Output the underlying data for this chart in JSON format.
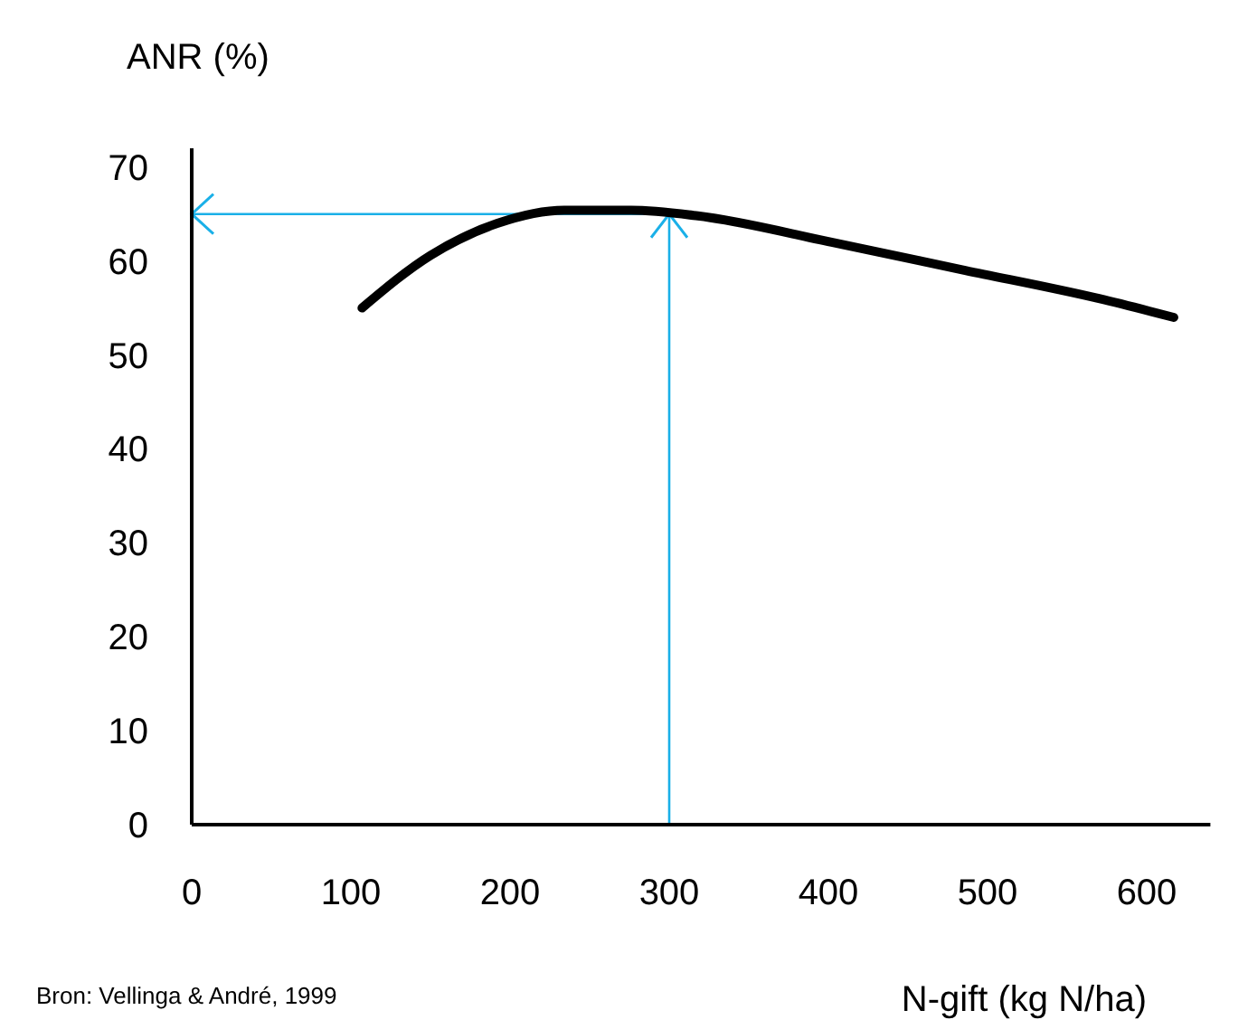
{
  "chart_data": {
    "type": "line",
    "ylabel": "ANR (%)",
    "xlabel": "N-gift (kg N/ha)",
    "annotations": [
      "Bron: Vellinga & André, 1999"
    ],
    "x": [
      107,
      150,
      192,
      234,
      276,
      318,
      402,
      486,
      570,
      617
    ],
    "series": [
      {
        "color": "#000000",
        "values": [
          55,
          60.6,
          64,
          65.4,
          65.4,
          64.8,
          62,
          59,
          56,
          54
        ]
      }
    ],
    "xlim": [
      0,
      640
    ],
    "xticks": [
      0,
      100,
      200,
      300,
      400,
      500,
      600
    ],
    "ylim": [
      0,
      72
    ],
    "yticks": [
      0,
      10,
      20,
      30,
      40,
      50,
      60,
      70
    ],
    "ref_lines": [
      {
        "axis": "x",
        "value": 300,
        "color": "#1ab0e8"
      },
      {
        "axis": "y",
        "value": 65,
        "color": "#1ab0e8"
      }
    ],
    "grid": false,
    "marker": "none",
    "line_style": "solid"
  }
}
